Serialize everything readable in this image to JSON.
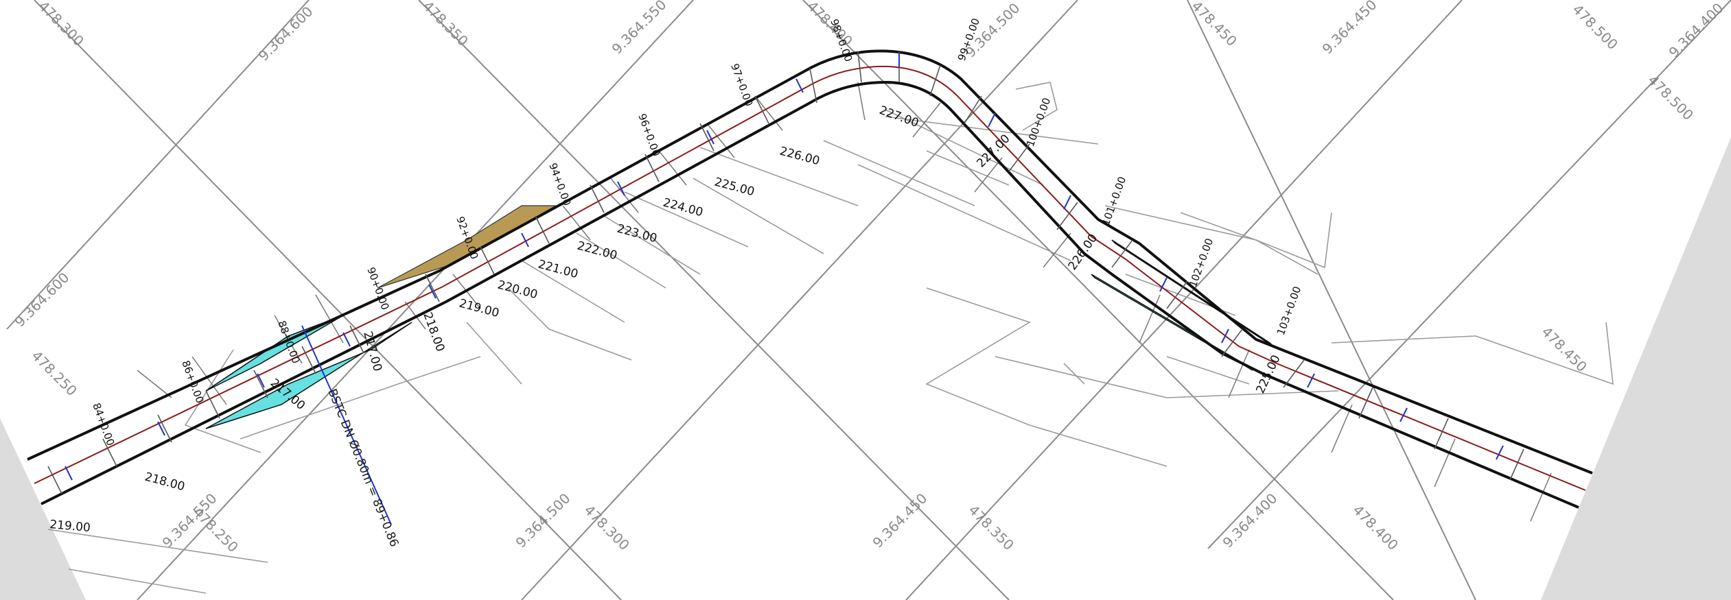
{
  "colors": {
    "background": "#ffffff",
    "gray_panel": "#dcdcdc",
    "grid_line": "#8a8a8a",
    "road_edge": "#111111",
    "centerline": "#8b1a1a",
    "pipe": "#1f35c9",
    "cyan_fill": "#66e0e0",
    "tan_fill": "#b89a55",
    "contour": "#9a9a9a"
  },
  "grid_labels": [
    "478.300",
    "9.364.600",
    "478.350",
    "9.364.550",
    "478.400",
    "9.364.500",
    "478.450",
    "9.364.450",
    "478.500",
    "9.364.400",
    "478.500",
    "9.364.600",
    "478.250",
    "9.364.550",
    "478.250",
    "9.364.500",
    "478.300",
    "9.364.450",
    "478.350",
    "9.364.400",
    "478.400",
    "478.450"
  ],
  "contour_labels": [
    "227.00",
    "226.00",
    "225.00",
    "224.00",
    "223.00",
    "222.00",
    "221.00",
    "220.00",
    "219.00",
    "218.00",
    "217.00",
    "217.00",
    "218.00",
    "219.00",
    "227.00",
    "226.00",
    "225.00"
  ],
  "station_labels": [
    "84+0.00",
    "86+0.00",
    "88+0.00",
    "90+0.00",
    "92+0.00",
    "94+0.00",
    "96+0.00",
    "97+0.00",
    "98+0.00",
    "99+0.00",
    "100+0.00",
    "101+0.00",
    "102+0.00",
    "103+0.00"
  ],
  "pipe_label": "BSTC DN Ø0.80m = 89+0.86"
}
